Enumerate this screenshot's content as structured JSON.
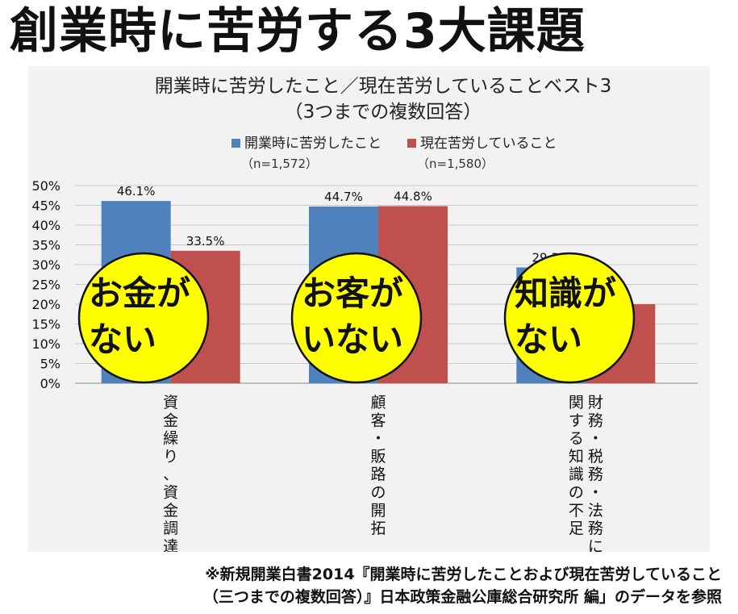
{
  "headline": "創業時に苦労する3大課題",
  "chart_data": {
    "type": "bar",
    "title": [
      "開業時に苦労したこと／現在苦労していることベスト3",
      "（3つまでの複数回答）"
    ],
    "categories": [
      "資金繰り、資金調達",
      "顧客・販路の開拓",
      "財務・税務・法務に関する知識の不足"
    ],
    "category_lines": [
      [
        "資金繰り、資金調達"
      ],
      [
        "顧客・販路の開拓"
      ],
      [
        "財務・税務・法務に",
        "関する知識の不足"
      ]
    ],
    "series": [
      {
        "name": "開業時に苦労したこと",
        "n_label": "（n=1,572）",
        "color": "#4f81bd",
        "values": [
          46.1,
          44.7,
          29.3
        ],
        "labels": [
          "46.1%",
          "44.7%",
          "29.3%"
        ]
      },
      {
        "name": "現在苦労していること",
        "n_label": "（n=1,580）",
        "color": "#c0504d",
        "values": [
          33.5,
          44.8,
          20.0
        ],
        "labels": [
          "33.5%",
          "44.8%",
          ""
        ]
      }
    ],
    "ylim": [
      0,
      50
    ],
    "yticks": [
      "0%",
      "5%",
      "10%",
      "15%",
      "20%",
      "25%",
      "30%",
      "35%",
      "40%",
      "45%",
      "50%"
    ],
    "grid": true,
    "legend_position": "top"
  },
  "overlays": [
    {
      "lines": [
        "お金が",
        "ない"
      ],
      "fill": "#ffff00"
    },
    {
      "lines": [
        "お客が",
        "いない"
      ],
      "fill": "#ffff00"
    },
    {
      "lines": [
        "知識が",
        "ない"
      ],
      "fill": "#ffff00"
    }
  ],
  "footer": [
    "※新規開業白書2014『開業時に苦労したことおよび現在苦労していること",
    "（三つまでの複数回答）』日本政策金融公庫総合研究所 編」のデータを参照"
  ]
}
